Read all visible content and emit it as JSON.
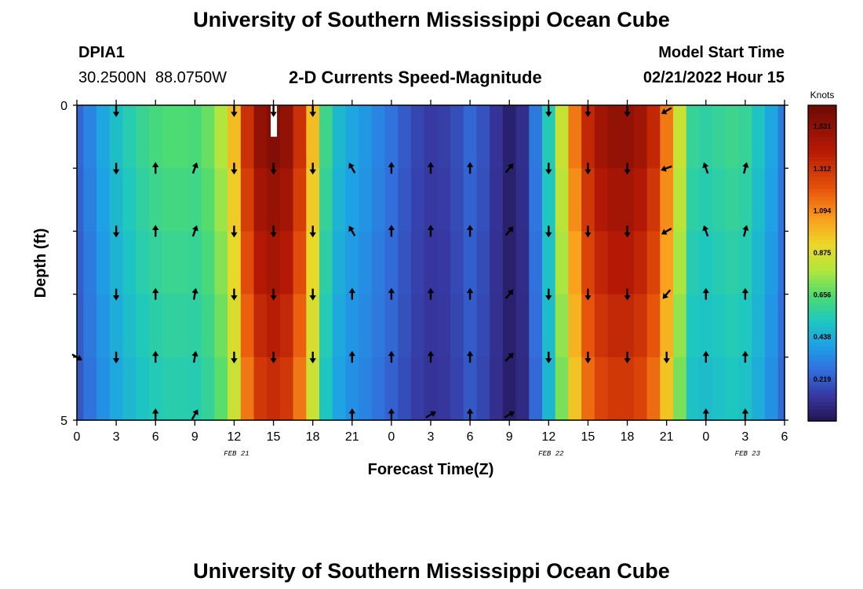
{
  "page": {
    "title": "University of Southern Mississippi Ocean Cube",
    "station_id": "DPIA1",
    "station_coords": "30.2500N  88.0750W",
    "subtitle": "2-D Currents Speed-Magnitude",
    "model_start_label": "Model Start Time",
    "model_start_value": "02/21/2022 Hour 15",
    "footer_title": "University of Southern Mississippi Ocean Cube"
  },
  "chart_data": {
    "type": "heatmap",
    "title": "2-D Currents Speed-Magnitude",
    "xlabel": "Forecast Time(Z)",
    "ylabel": "Depth (ft)",
    "xlim": [
      0,
      54
    ],
    "ylim": [
      0,
      5
    ],
    "y_ticks": [
      "0",
      "5"
    ],
    "x_tick_hours": [
      0,
      3,
      6,
      9,
      12,
      15,
      18,
      21,
      24,
      27,
      30,
      33,
      36,
      39,
      42,
      45,
      48,
      51,
      54
    ],
    "x_tick_labels": [
      "0",
      "3",
      "6",
      "9",
      "12",
      "15",
      "18",
      "21",
      "0",
      "3",
      "6",
      "9",
      "12",
      "15",
      "18",
      "21",
      "0",
      "3",
      "6"
    ],
    "date_labels": [
      {
        "text": "FEB 21",
        "hour": 12
      },
      {
        "text": "FEB 22",
        "hour": 36
      },
      {
        "text": "FEB 23",
        "hour": 51
      }
    ],
    "colorbar": {
      "label": "Knots",
      "min": 0,
      "max": 1.64,
      "tick_values": [
        0.219,
        0.438,
        0.656,
        0.875,
        1.094,
        1.312,
        1.531
      ],
      "tick_labels": [
        "0.219",
        "0.438",
        "0.656",
        "0.875",
        "1.094",
        "1.312",
        "1.531"
      ]
    },
    "speed_profile": {
      "hours": [
        0,
        1,
        2,
        3,
        4,
        5,
        6,
        7,
        8,
        9,
        10,
        11,
        12,
        13,
        14,
        15,
        16,
        17,
        18,
        19,
        20,
        21,
        22,
        23,
        24,
        25,
        26,
        27,
        28,
        29,
        30,
        31,
        32,
        33,
        34,
        35,
        36,
        37,
        38,
        39,
        40,
        41,
        42,
        43,
        44,
        45,
        46,
        47,
        48,
        49,
        50,
        51,
        52,
        53,
        54
      ],
      "surface_knots": [
        0.25,
        0.33,
        0.42,
        0.5,
        0.56,
        0.61,
        0.64,
        0.66,
        0.66,
        0.65,
        0.7,
        0.8,
        1.0,
        1.35,
        1.55,
        1.6,
        1.55,
        1.35,
        1.0,
        0.62,
        0.48,
        0.42,
        0.38,
        0.33,
        0.28,
        0.22,
        0.17,
        0.14,
        0.15,
        0.19,
        0.25,
        0.2,
        0.12,
        0.05,
        0.1,
        0.3,
        0.55,
        0.85,
        1.15,
        1.38,
        1.5,
        1.55,
        1.55,
        1.5,
        1.38,
        1.15,
        0.85,
        0.6,
        0.58,
        0.6,
        0.62,
        0.6,
        0.52,
        0.42,
        0.3
      ],
      "depth_factor_at_bottom": 0.82
    },
    "empty_cells": [
      {
        "hour": 15,
        "depth_from": 0,
        "depth_to": 0.5
      }
    ],
    "vectors": {
      "hours": [
        0,
        3,
        6,
        9,
        12,
        15,
        18,
        21,
        24,
        27,
        30,
        33,
        36,
        39,
        42,
        45,
        48,
        51
      ],
      "depths": [
        0,
        1,
        2,
        3,
        4,
        5
      ],
      "angles_deg": [
        [
          null,
          180,
          null,
          null,
          180,
          180,
          180,
          null,
          null,
          null,
          null,
          null,
          180,
          180,
          180,
          240,
          null,
          null
        ],
        [
          null,
          180,
          0,
          20,
          180,
          180,
          180,
          -30,
          0,
          0,
          0,
          40,
          180,
          180,
          180,
          250,
          -20,
          15
        ],
        [
          null,
          180,
          0,
          20,
          180,
          180,
          180,
          -30,
          0,
          0,
          0,
          40,
          180,
          180,
          180,
          240,
          -20,
          15
        ],
        [
          null,
          180,
          0,
          10,
          180,
          180,
          180,
          0,
          0,
          0,
          0,
          40,
          180,
          180,
          180,
          220,
          0,
          0
        ],
        [
          120,
          180,
          0,
          10,
          180,
          180,
          180,
          0,
          0,
          0,
          0,
          45,
          180,
          180,
          180,
          180,
          0,
          0
        ],
        [
          null,
          null,
          0,
          30,
          null,
          null,
          null,
          0,
          0,
          60,
          0,
          60,
          null,
          null,
          null,
          null,
          0,
          0
        ]
      ]
    }
  }
}
